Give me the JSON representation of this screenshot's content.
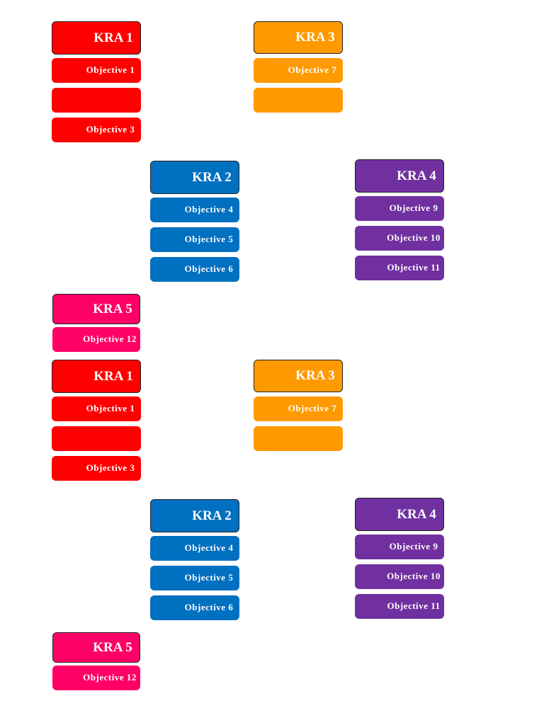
{
  "pages": [
    {
      "groups": [
        {
          "title": "KRA 1",
          "color": "#ff0000",
          "objectives": [
            "Objective 1",
            null,
            "Objective 3"
          ]
        },
        {
          "title": "KRA 3",
          "color": "#ff9900",
          "objectives": [
            "Objective 7",
            null
          ]
        },
        {
          "title": "KRA 2",
          "color": "#0070c0",
          "objectives": [
            "Objective 4",
            "Objective 5",
            "Objective 6"
          ]
        },
        {
          "title": "KRA 4",
          "color": "#7030a0",
          "objectives": [
            "Objective 9",
            "Objective 10",
            "Objective 11"
          ]
        },
        {
          "title": "KRA 5",
          "color": "#ff0066",
          "objectives": [
            "Objective 12"
          ]
        }
      ]
    },
    {
      "groups": [
        {
          "title": "KRA 1",
          "color": "#ff0000",
          "objectives": [
            "Objective 1",
            null,
            "Objective 3"
          ]
        },
        {
          "title": "KRA 3",
          "color": "#ff9900",
          "objectives": [
            "Objective 7",
            null
          ]
        },
        {
          "title": "KRA 2",
          "color": "#0070c0",
          "objectives": [
            "Objective 4",
            "Objective 5",
            "Objective 6"
          ]
        },
        {
          "title": "KRA 4",
          "color": "#7030a0",
          "objectives": [
            "Objective 9",
            "Objective 10",
            "Objective 11"
          ]
        },
        {
          "title": "KRA 5",
          "color": "#ff0066",
          "objectives": [
            "Objective 12"
          ]
        }
      ]
    }
  ]
}
